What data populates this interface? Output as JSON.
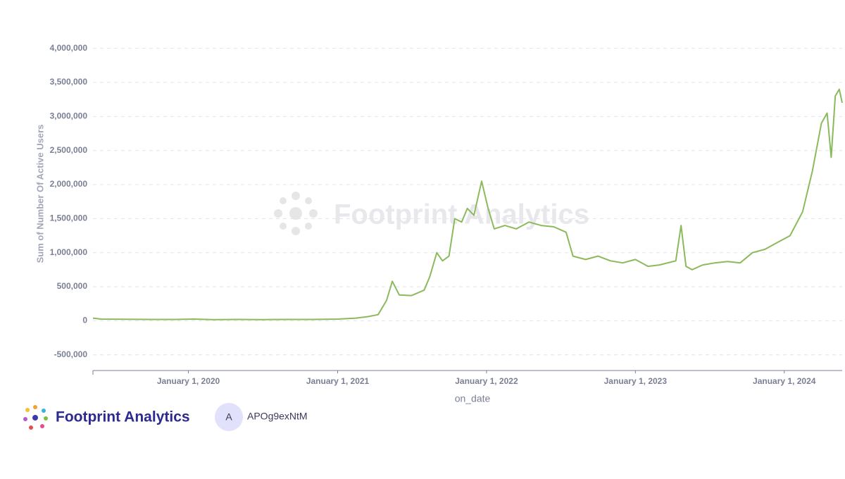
{
  "chart_data": {
    "type": "line",
    "y_label": "Sum of Number Of Active Users",
    "x_label": "on_date",
    "watermark": "Footprint Analytics",
    "x": [
      "2019-05-12",
      "2019-06-01",
      "2019-08-01",
      "2019-10-01",
      "2019-12-01",
      "2020-01-15",
      "2020-03-01",
      "2020-05-01",
      "2020-07-01",
      "2020-09-01",
      "2020-11-01",
      "2021-01-01",
      "2021-02-15",
      "2021-03-15",
      "2021-04-10",
      "2021-05-01",
      "2021-05-15",
      "2021-06-01",
      "2021-07-01",
      "2021-08-01",
      "2021-08-15",
      "2021-09-01",
      "2021-09-15",
      "2021-10-01",
      "2021-10-15",
      "2021-11-01",
      "2021-11-15",
      "2021-12-01",
      "2021-12-20",
      "2022-01-05",
      "2022-01-20",
      "2022-02-15",
      "2022-03-15",
      "2022-04-15",
      "2022-05-15",
      "2022-06-15",
      "2022-07-15",
      "2022-08-01",
      "2022-09-01",
      "2022-10-01",
      "2022-11-01",
      "2022-12-01",
      "2023-01-01",
      "2023-02-01",
      "2023-03-01",
      "2023-04-10",
      "2023-04-23",
      "2023-05-05",
      "2023-05-20",
      "2023-06-15",
      "2023-07-15",
      "2023-08-15",
      "2023-09-15",
      "2023-10-15",
      "2023-11-15",
      "2023-12-15",
      "2024-01-15",
      "2024-02-15",
      "2024-03-10",
      "2024-04-01",
      "2024-04-15",
      "2024-04-25",
      "2024-05-05",
      "2024-05-15",
      "2024-05-22"
    ],
    "series": [
      {
        "name": "Number Of Active Users",
        "color": "#8bba5c",
        "values": [
          40000,
          25000,
          22000,
          20000,
          20000,
          25000,
          18000,
          20000,
          18000,
          20000,
          20000,
          25000,
          40000,
          60000,
          90000,
          300000,
          580000,
          380000,
          370000,
          450000,
          650000,
          1000000,
          880000,
          950000,
          1500000,
          1450000,
          1650000,
          1550000,
          2050000,
          1650000,
          1350000,
          1400000,
          1350000,
          1450000,
          1400000,
          1380000,
          1300000,
          950000,
          900000,
          950000,
          880000,
          850000,
          900000,
          800000,
          820000,
          880000,
          1400000,
          800000,
          750000,
          820000,
          850000,
          870000,
          850000,
          1000000,
          1050000,
          1150000,
          1250000,
          1600000,
          2200000,
          2900000,
          3050000,
          2400000,
          3300000,
          3400000,
          3200000
        ]
      }
    ],
    "xlim": [
      "2019-05-12",
      "2024-05-22"
    ],
    "xticks": [
      {
        "value": "2020-01-01",
        "label": "January 1, 2020"
      },
      {
        "value": "2021-01-01",
        "label": "January 1, 2021"
      },
      {
        "value": "2022-01-01",
        "label": "January 1, 2022"
      },
      {
        "value": "2023-01-01",
        "label": "January 1, 2023"
      },
      {
        "value": "2024-01-01",
        "label": "January 1, 2024"
      }
    ],
    "ylim": [
      -730000,
      4100000
    ],
    "yticks": [
      {
        "value": -500000,
        "label": "-500,000"
      },
      0,
      {
        "value": 500000,
        "label": "500,000"
      },
      {
        "value": 1000000,
        "label": "1,000,000"
      },
      {
        "value": 1500000,
        "label": "1,500,000"
      },
      {
        "value": 2000000,
        "label": "2,000,000"
      },
      {
        "value": 2500000,
        "label": "2,500,000"
      },
      {
        "value": 3000000,
        "label": "3,000,000"
      },
      {
        "value": 3500000,
        "label": "3,500,000"
      },
      {
        "value": 4000000,
        "label": "4,000,000"
      }
    ],
    "grid": true
  },
  "footer": {
    "brand": "Footprint Analytics",
    "avatar": "A",
    "user": "APOg9exNtM"
  }
}
